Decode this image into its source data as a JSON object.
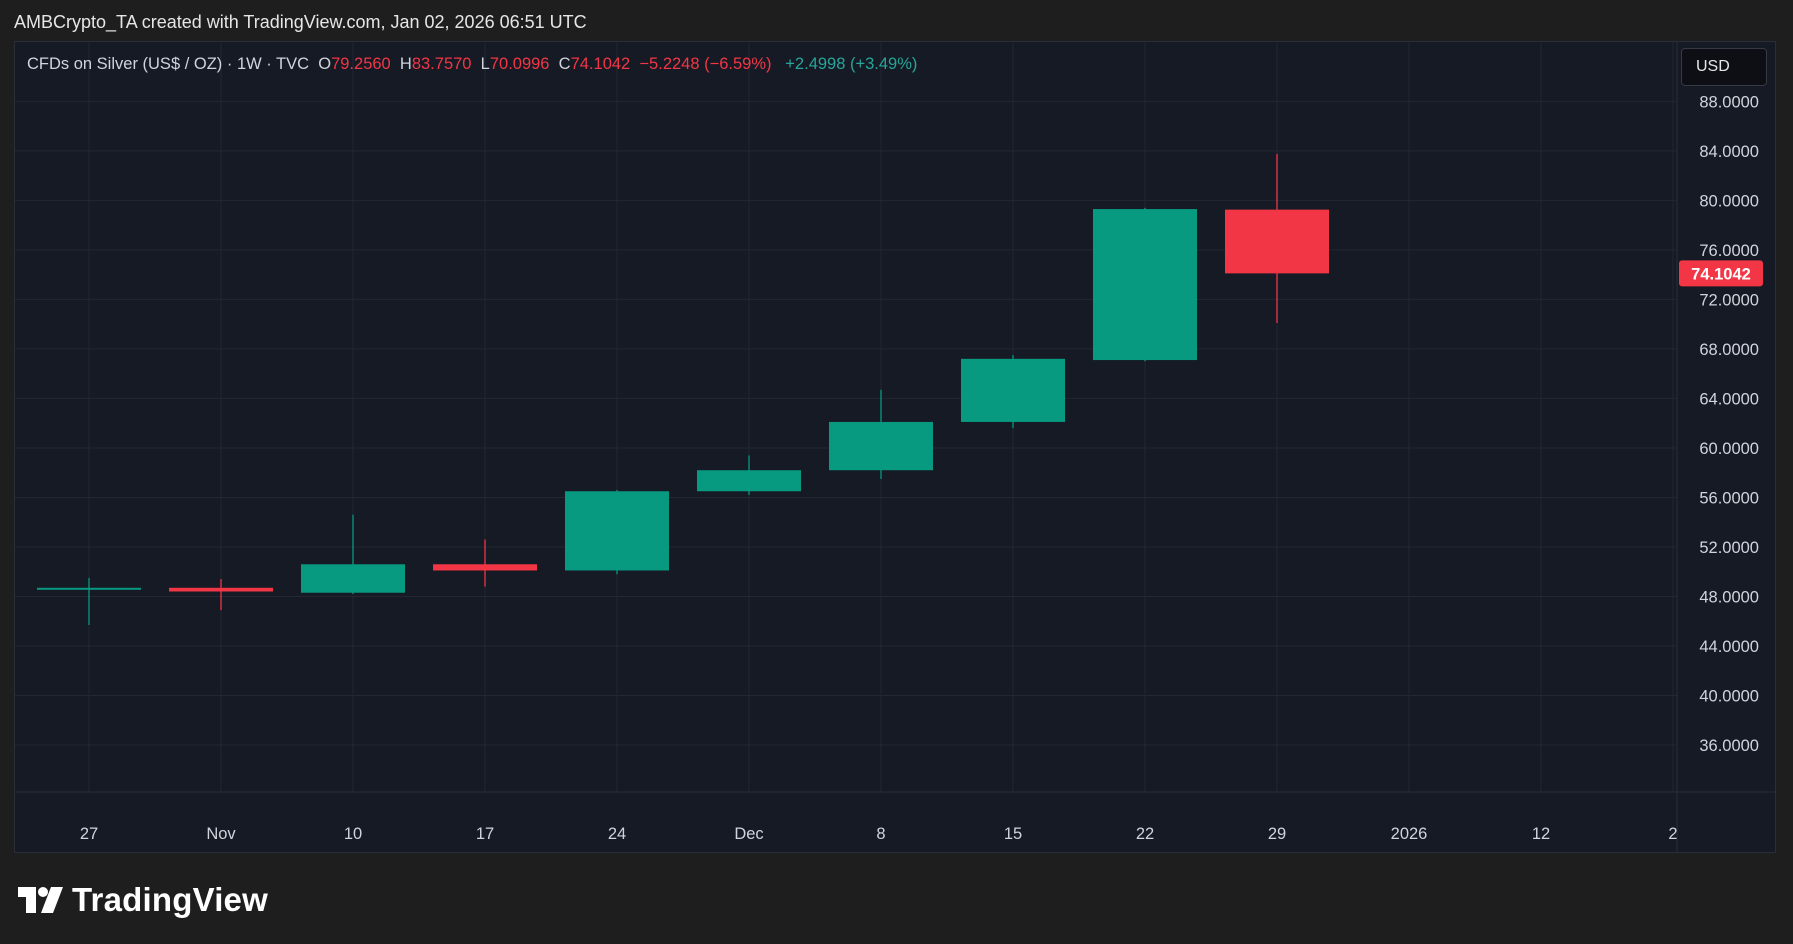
{
  "header": {
    "created_by": "AMBCrypto_TA created with TradingView.com, Jan 02, 2026 06:51 UTC"
  },
  "legend": {
    "symbol": "CFDs on Silver (US$ / OZ) · 1W · TVC",
    "open_label": "O",
    "open": "79.2560",
    "high_label": "H",
    "high": "83.7570",
    "low_label": "L",
    "low": "70.0996",
    "close_label": "C",
    "close": "74.1042",
    "change": "−5.2248 (−6.59%)",
    "extra_change": "+2.4998 (+3.49%)"
  },
  "currency_button": "USD",
  "brand": {
    "name": "TradingView",
    "logo_icon": "tradingview-logo-icon"
  },
  "colors": {
    "up": "#089981",
    "down": "#f23645",
    "panel_bg": "#161a25",
    "grid": "#232733",
    "text": "#d1d4dc"
  },
  "chart_data": {
    "type": "candlestick",
    "x_ticks": [
      "27",
      "Nov",
      "10",
      "17",
      "24",
      "Dec",
      "8",
      "15",
      "22",
      "29",
      "2026",
      "12",
      "2"
    ],
    "y_ticks": [
      "36.0000",
      "40.0000",
      "44.0000",
      "48.0000",
      "52.0000",
      "56.0000",
      "60.0000",
      "64.0000",
      "68.0000",
      "72.0000",
      "76.0000",
      "80.0000",
      "84.0000",
      "88.0000"
    ],
    "y_tick_values": [
      36,
      40,
      44,
      48,
      52,
      56,
      60,
      64,
      68,
      72,
      76,
      80,
      84,
      88
    ],
    "ylim": [
      32.2,
      92.8
    ],
    "last_price_label": "74.1042",
    "last_price": 74.1042,
    "candles": [
      {
        "date": "27",
        "open": 48.6,
        "high": 49.5,
        "low": 45.7,
        "close": 48.7
      },
      {
        "date": "Nov",
        "open": 48.7,
        "high": 49.4,
        "low": 46.9,
        "close": 48.4
      },
      {
        "date": "10",
        "open": 48.3,
        "high": 54.6,
        "low": 48.2,
        "close": 50.6
      },
      {
        "date": "17",
        "open": 50.6,
        "high": 52.6,
        "low": 48.8,
        "close": 50.1
      },
      {
        "date": "24",
        "open": 50.1,
        "high": 56.6,
        "low": 49.8,
        "close": 56.5
      },
      {
        "date": "Dec",
        "open": 56.5,
        "high": 59.4,
        "low": 56.2,
        "close": 58.2
      },
      {
        "date": "8",
        "open": 58.2,
        "high": 64.7,
        "low": 57.5,
        "close": 62.1
      },
      {
        "date": "15",
        "open": 62.1,
        "high": 67.5,
        "low": 61.6,
        "close": 67.2
      },
      {
        "date": "22",
        "open": 67.1,
        "high": 79.4,
        "low": 67.0,
        "close": 79.3
      },
      {
        "date": "29",
        "open": 79.256,
        "high": 83.757,
        "low": 70.0996,
        "close": 74.1042
      }
    ]
  }
}
